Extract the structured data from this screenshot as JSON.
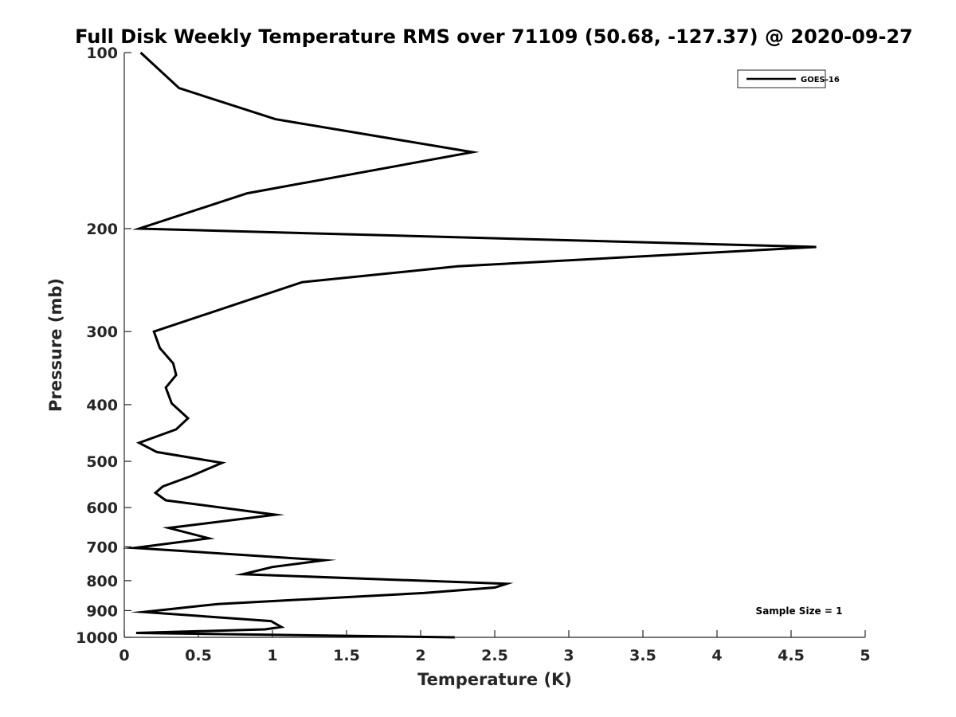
{
  "chart_data": {
    "type": "line",
    "title": "Full Disk Weekly Temperature RMS over 71109 (50.68, -127.37) @ 2020-09-27",
    "xlabel": "Temperature (K)",
    "ylabel": "Pressure (mb)",
    "xlim": [
      0,
      5
    ],
    "ylim": [
      100,
      1000
    ],
    "y_scale": "log",
    "y_reversed": true,
    "grid": false,
    "legend_position": "top-right",
    "x_ticks": [
      "0",
      "0.5",
      "1",
      "1.5",
      "2",
      "2.5",
      "3",
      "3.5",
      "4",
      "4.5",
      "5"
    ],
    "y_ticks": [
      "100",
      "200",
      "300",
      "400",
      "500",
      "600",
      "700",
      "800",
      "900",
      "1000"
    ],
    "annotation": "Sample Size = 1",
    "series": [
      {
        "name": "GOES-16",
        "color": "#000000",
        "points": [
          [
            0.11,
            100
          ],
          [
            0.37,
            115
          ],
          [
            1.02,
            130
          ],
          [
            2.35,
            148
          ],
          [
            0.83,
            174
          ],
          [
            0.1,
            200
          ],
          [
            4.67,
            215
          ],
          [
            2.25,
            232
          ],
          [
            1.2,
            247
          ],
          [
            0.2,
            300
          ],
          [
            0.24,
            320
          ],
          [
            0.33,
            340
          ],
          [
            0.35,
            356
          ],
          [
            0.28,
            374
          ],
          [
            0.32,
            398
          ],
          [
            0.43,
            422
          ],
          [
            0.35,
            441
          ],
          [
            0.1,
            465
          ],
          [
            0.22,
            482
          ],
          [
            0.66,
            503
          ],
          [
            0.45,
            530
          ],
          [
            0.26,
            552
          ],
          [
            0.21,
            566
          ],
          [
            0.28,
            583
          ],
          [
            1.02,
            617
          ],
          [
            0.3,
            650
          ],
          [
            0.57,
            677
          ],
          [
            0.07,
            703
          ],
          [
            1.35,
            738
          ],
          [
            1.0,
            758
          ],
          [
            0.8,
            780
          ],
          [
            2.58,
            810
          ],
          [
            2.5,
            822
          ],
          [
            2.02,
            840
          ],
          [
            0.63,
            877
          ],
          [
            0.13,
            905
          ],
          [
            0.99,
            938
          ],
          [
            1.06,
            960
          ],
          [
            0.95,
            969
          ],
          [
            0.08,
            983
          ],
          [
            2.23,
            1000
          ]
        ]
      }
    ]
  }
}
